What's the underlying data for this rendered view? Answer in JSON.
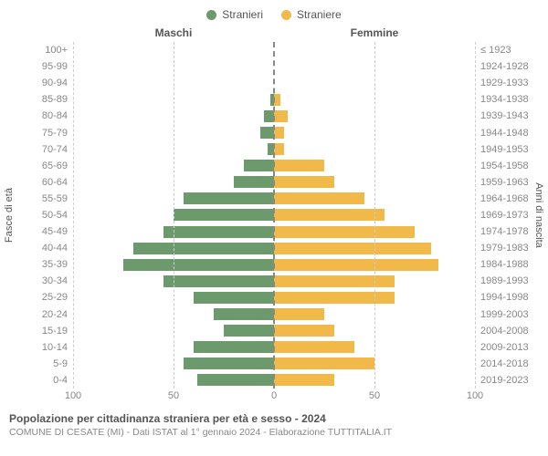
{
  "chart": {
    "type": "population-pyramid",
    "legend": {
      "male": {
        "label": "Stranieri",
        "color": "#6c9a6c"
      },
      "female": {
        "label": "Straniere",
        "color": "#f0b94a"
      }
    },
    "column_titles": {
      "left": "Maschi",
      "right": "Femmine"
    },
    "yaxis_left": {
      "title": "Fasce di età"
    },
    "yaxis_right": {
      "title": "Anni di nascita"
    },
    "xlim": 100,
    "xticks": [
      100,
      50,
      0,
      50,
      100
    ],
    "background_color": "#ffffff",
    "grid_color": "#cccccc",
    "bar_height_pct": 72,
    "label_fontsize": 11,
    "title_fontsize": 12,
    "rows": [
      {
        "age": "100+",
        "birth": "≤ 1923",
        "m": 0,
        "f": 0
      },
      {
        "age": "95-99",
        "birth": "1924-1928",
        "m": 0,
        "f": 0
      },
      {
        "age": "90-94",
        "birth": "1929-1933",
        "m": 0,
        "f": 0
      },
      {
        "age": "85-89",
        "birth": "1934-1938",
        "m": 2,
        "f": 3
      },
      {
        "age": "80-84",
        "birth": "1939-1943",
        "m": 5,
        "f": 7
      },
      {
        "age": "75-79",
        "birth": "1944-1948",
        "m": 7,
        "f": 5
      },
      {
        "age": "70-74",
        "birth": "1949-1953",
        "m": 3,
        "f": 5
      },
      {
        "age": "65-69",
        "birth": "1954-1958",
        "m": 15,
        "f": 25
      },
      {
        "age": "60-64",
        "birth": "1959-1963",
        "m": 20,
        "f": 30
      },
      {
        "age": "55-59",
        "birth": "1964-1968",
        "m": 45,
        "f": 45
      },
      {
        "age": "50-54",
        "birth": "1969-1973",
        "m": 50,
        "f": 55
      },
      {
        "age": "45-49",
        "birth": "1974-1978",
        "m": 55,
        "f": 70
      },
      {
        "age": "40-44",
        "birth": "1979-1983",
        "m": 70,
        "f": 78
      },
      {
        "age": "35-39",
        "birth": "1984-1988",
        "m": 75,
        "f": 82
      },
      {
        "age": "30-34",
        "birth": "1989-1993",
        "m": 55,
        "f": 60
      },
      {
        "age": "25-29",
        "birth": "1994-1998",
        "m": 40,
        "f": 60
      },
      {
        "age": "20-24",
        "birth": "1999-2003",
        "m": 30,
        "f": 25
      },
      {
        "age": "15-19",
        "birth": "2004-2008",
        "m": 25,
        "f": 30
      },
      {
        "age": "10-14",
        "birth": "2009-2013",
        "m": 40,
        "f": 40
      },
      {
        "age": "5-9",
        "birth": "2014-2018",
        "m": 45,
        "f": 50
      },
      {
        "age": "0-4",
        "birth": "2019-2023",
        "m": 38,
        "f": 30
      }
    ]
  },
  "footer": {
    "title": "Popolazione per cittadinanza straniera per età e sesso - 2024",
    "subtitle": "COMUNE DI CESATE (MI) - Dati ISTAT al 1° gennaio 2024 - Elaborazione TUTTITALIA.IT"
  }
}
